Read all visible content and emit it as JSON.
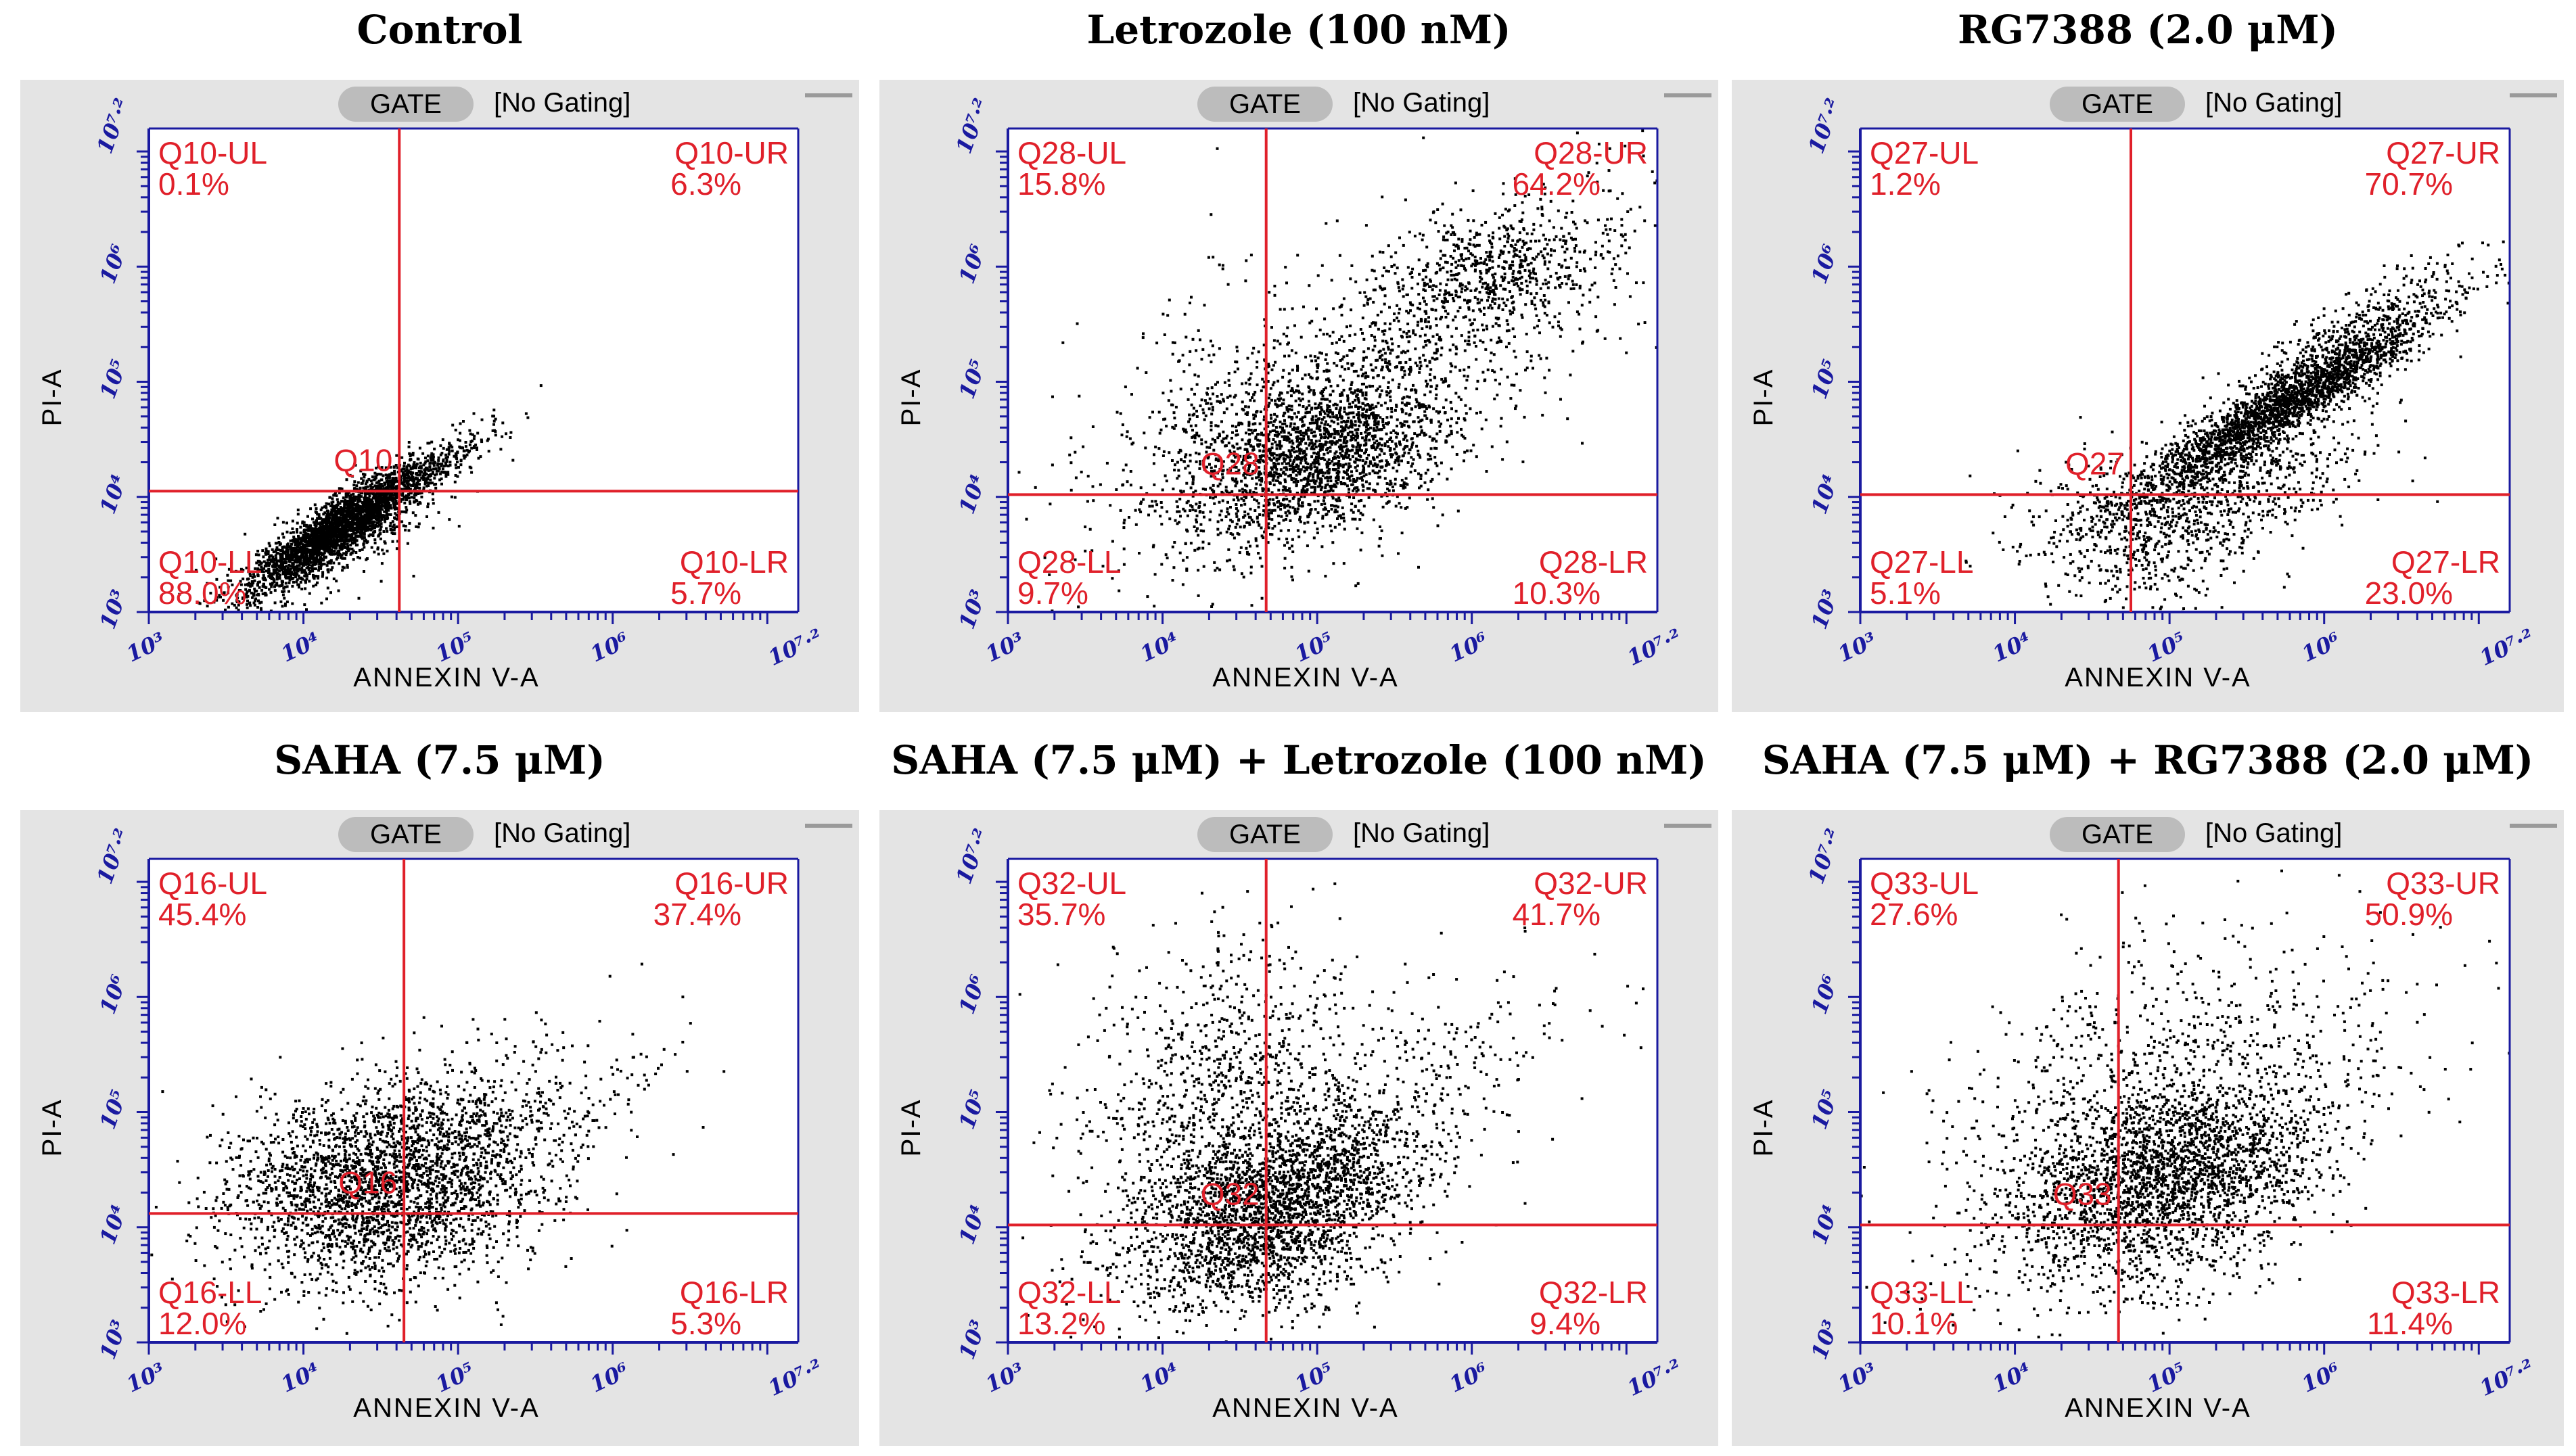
{
  "gate_label": "GATE",
  "gate_status": "[No Gating]",
  "x_axis_label": "ANNEXIN V-A",
  "y_axis_label": "PI-A",
  "x_ticks": [
    "10³",
    "10⁴",
    "10⁵",
    "10⁶",
    "10⁷·²"
  ],
  "y_ticks": [
    "10³",
    "10⁴",
    "10⁵",
    "10⁶",
    "10⁷·²"
  ],
  "colors": {
    "quadrant": "#e0202a",
    "axis": "#1a1aa0",
    "dots": "#000000"
  },
  "chart_data": [
    {
      "type": "scatter",
      "title": "Control",
      "gate_id": "Q10",
      "quadrants": {
        "UL": {
          "label": "Q10-UL",
          "value": "0.1%"
        },
        "UR": {
          "label": "Q10-UR",
          "value": "6.3%"
        },
        "LL": {
          "label": "Q10-LL",
          "value": "88.0%"
        },
        "LR": {
          "label": "Q10-LR",
          "value": "5.7%"
        }
      },
      "xlabel": "ANNEXIN V-A",
      "ylabel": "PI-A",
      "xlim": [
        3,
        7.2
      ],
      "ylim": [
        3,
        7.2
      ],
      "scale": "log10",
      "gate_x": 4.62,
      "gate_y": 4.05,
      "clusters": [
        {
          "n": 2600,
          "cx": 4.25,
          "cy": 3.75,
          "major": 0.38,
          "minor": 0.09,
          "angle": 43
        },
        {
          "n": 500,
          "cx": 4.2,
          "cy": 3.6,
          "major": 0.5,
          "minor": 0.16,
          "angle": 40
        },
        {
          "n": 160,
          "cx": 4.9,
          "cy": 4.3,
          "major": 0.3,
          "minor": 0.07,
          "angle": 40
        }
      ]
    },
    {
      "type": "scatter",
      "title": "Letrozole (100 nM)",
      "gate_id": "Q28",
      "quadrants": {
        "UL": {
          "label": "Q28-UL",
          "value": "15.8%"
        },
        "UR": {
          "label": "Q28-UR",
          "value": "64.2%"
        },
        "LL": {
          "label": "Q28-LL",
          "value": "9.7%"
        },
        "LR": {
          "label": "Q28-LR",
          "value": "10.3%"
        }
      },
      "xlabel": "ANNEXIN V-A",
      "ylabel": "PI-A",
      "xlim": [
        3,
        7.2
      ],
      "ylim": [
        3,
        7.2
      ],
      "scale": "log10",
      "gate_x": 4.67,
      "gate_y": 4.02,
      "clusters": [
        {
          "n": 1700,
          "cx": 5.0,
          "cy": 4.35,
          "major": 0.45,
          "minor": 0.3,
          "angle": 30
        },
        {
          "n": 1100,
          "cx": 5.45,
          "cy": 5.15,
          "major": 1.1,
          "minor": 0.42,
          "angle": 42
        },
        {
          "n": 500,
          "cx": 6.1,
          "cy": 5.95,
          "major": 0.4,
          "minor": 0.25,
          "angle": 20
        },
        {
          "n": 400,
          "cx": 4.5,
          "cy": 4.5,
          "major": 0.7,
          "minor": 0.5,
          "angle": 80
        }
      ]
    },
    {
      "type": "scatter",
      "title": "RG7388 (2.0 μM)",
      "gate_id": "Q27",
      "quadrants": {
        "UL": {
          "label": "Q27-UL",
          "value": "1.2%"
        },
        "UR": {
          "label": "Q27-UR",
          "value": "70.7%"
        },
        "LL": {
          "label": "Q27-LL",
          "value": "5.1%"
        },
        "LR": {
          "label": "Q27-LR",
          "value": "23.0%"
        }
      },
      "xlabel": "ANNEXIN V-A",
      "ylabel": "PI-A",
      "xlim": [
        3,
        7.2
      ],
      "ylim": [
        3,
        7.2
      ],
      "scale": "log10",
      "gate_x": 4.75,
      "gate_y": 4.02,
      "clusters": [
        {
          "n": 2300,
          "cx": 5.75,
          "cy": 4.8,
          "major": 0.65,
          "minor": 0.11,
          "angle": 40
        },
        {
          "n": 800,
          "cx": 5.3,
          "cy": 4.05,
          "major": 0.55,
          "minor": 0.3,
          "angle": 30
        },
        {
          "n": 350,
          "cx": 4.7,
          "cy": 3.7,
          "major": 0.35,
          "minor": 0.35,
          "angle": 0
        },
        {
          "n": 250,
          "cx": 6.2,
          "cy": 5.5,
          "major": 0.45,
          "minor": 0.1,
          "angle": 40
        }
      ]
    },
    {
      "type": "scatter",
      "title": "SAHA (7.5 μM)",
      "gate_id": "Q16",
      "quadrants": {
        "UL": {
          "label": "Q16-UL",
          "value": "45.4%"
        },
        "UR": {
          "label": "Q16-UR",
          "value": "37.4%"
        },
        "LL": {
          "label": "Q16-LL",
          "value": "12.0%"
        },
        "LR": {
          "label": "Q16-LR",
          "value": "5.3%"
        }
      },
      "xlabel": "ANNEXIN V-A",
      "ylabel": "PI-A",
      "xlim": [
        3,
        7.2
      ],
      "ylim": [
        3,
        7.2
      ],
      "scale": "log10",
      "gate_x": 4.65,
      "gate_y": 4.12,
      "clusters": [
        {
          "n": 2400,
          "cx": 4.5,
          "cy": 4.35,
          "major": 0.5,
          "minor": 0.42,
          "angle": 20
        },
        {
          "n": 450,
          "cx": 4.9,
          "cy": 4.7,
          "major": 0.6,
          "minor": 0.35,
          "angle": 35
        },
        {
          "n": 160,
          "cx": 5.5,
          "cy": 5.0,
          "major": 0.6,
          "minor": 0.35,
          "angle": 40
        }
      ]
    },
    {
      "type": "scatter",
      "title": "SAHA (7.5 μM) + Letrozole (100 nM)",
      "gate_id": "Q32",
      "quadrants": {
        "UL": {
          "label": "Q32-UL",
          "value": "35.7%"
        },
        "UR": {
          "label": "Q32-UR",
          "value": "41.7%"
        },
        "LL": {
          "label": "Q32-LL",
          "value": "13.2%"
        },
        "LR": {
          "label": "Q32-LR",
          "value": "9.4%"
        }
      },
      "xlabel": "ANNEXIN V-A",
      "ylabel": "PI-A",
      "xlim": [
        3,
        7.2
      ],
      "ylim": [
        3,
        7.2
      ],
      "scale": "log10",
      "gate_x": 4.67,
      "gate_y": 4.02,
      "clusters": [
        {
          "n": 1500,
          "cx": 4.85,
          "cy": 4.3,
          "major": 0.5,
          "minor": 0.28,
          "angle": 30
        },
        {
          "n": 1300,
          "cx": 4.4,
          "cy": 4.9,
          "major": 0.8,
          "minor": 0.45,
          "angle": 85
        },
        {
          "n": 600,
          "cx": 4.6,
          "cy": 3.75,
          "major": 0.45,
          "minor": 0.28,
          "angle": 10
        },
        {
          "n": 300,
          "cx": 5.5,
          "cy": 5.2,
          "major": 0.7,
          "minor": 0.35,
          "angle": 40
        }
      ]
    },
    {
      "type": "scatter",
      "title": "SAHA (7.5 μM) + RG7388 (2.0 μM)",
      "gate_id": "Q33",
      "quadrants": {
        "UL": {
          "label": "Q33-UL",
          "value": "27.6%"
        },
        "UR": {
          "label": "Q33-UR",
          "value": "50.9%"
        },
        "LL": {
          "label": "Q33-LL",
          "value": "10.1%"
        },
        "LR": {
          "label": "Q33-LR",
          "value": "11.4%"
        }
      },
      "xlabel": "ANNEXIN V-A",
      "ylabel": "PI-A",
      "xlim": [
        3,
        7.2
      ],
      "ylim": [
        3,
        7.2
      ],
      "scale": "log10",
      "gate_x": 4.67,
      "gate_y": 4.02,
      "clusters": [
        {
          "n": 1700,
          "cx": 5.05,
          "cy": 4.45,
          "major": 0.5,
          "minor": 0.32,
          "angle": 25
        },
        {
          "n": 900,
          "cx": 4.7,
          "cy": 4.9,
          "major": 0.8,
          "minor": 0.5,
          "angle": 60
        },
        {
          "n": 400,
          "cx": 5.5,
          "cy": 5.3,
          "major": 0.7,
          "minor": 0.45,
          "angle": 40
        },
        {
          "n": 300,
          "cx": 4.8,
          "cy": 3.8,
          "major": 0.5,
          "minor": 0.3,
          "angle": 0
        }
      ]
    }
  ]
}
